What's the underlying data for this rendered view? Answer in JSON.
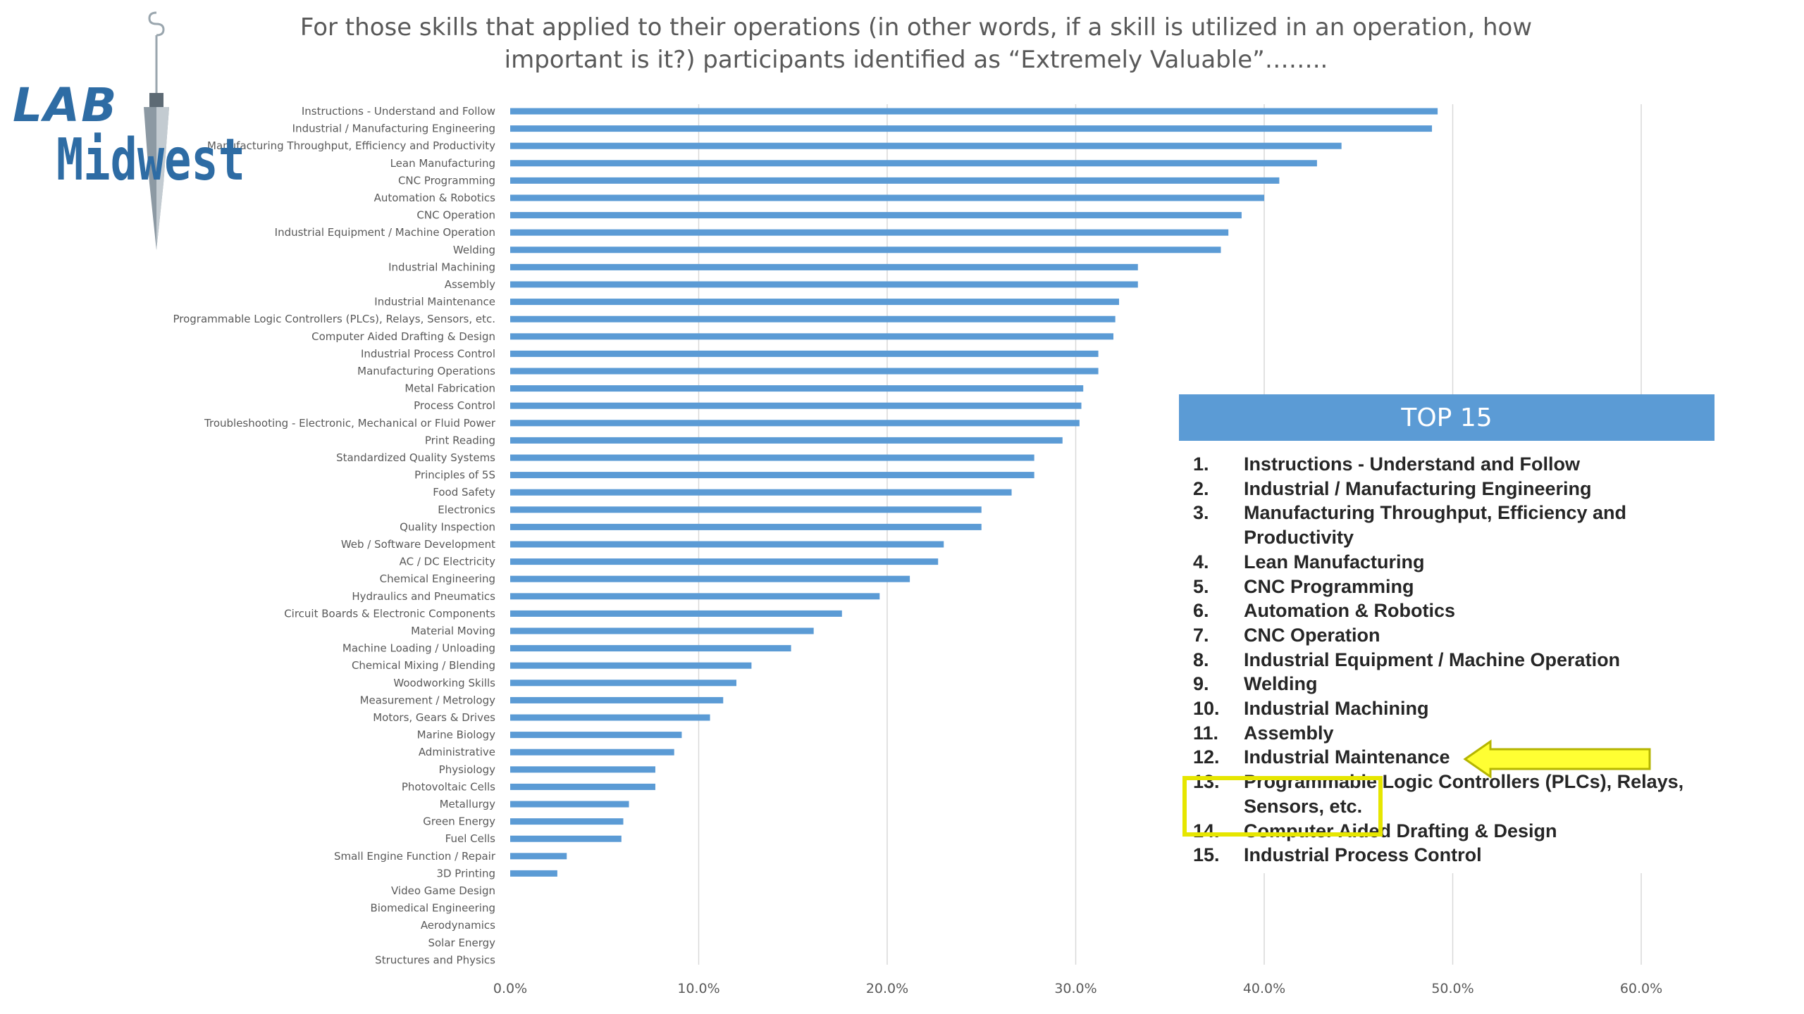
{
  "title": {
    "line1": "For those skills that applied to their operations (in other words, if a skill is utilized in an operation, how",
    "line2": "important is it?) participants identified as “Extremely Valuable”…….."
  },
  "logo": {
    "line1": "LAB",
    "line2": "Midwest",
    "icon": "plumb-bob-icon"
  },
  "chart_data": {
    "type": "bar",
    "orientation": "horizontal",
    "categories": [
      "Instructions - Understand and Follow",
      "Industrial / Manufacturing Engineering",
      "Manufacturing Throughput, Efficiency and Productivity",
      "Lean Manufacturing",
      "CNC Programming",
      "Automation & Robotics",
      "CNC Operation",
      "Industrial Equipment / Machine Operation",
      "Welding",
      "Industrial Machining",
      "Assembly",
      "Industrial Maintenance",
      "Programmable Logic Controllers (PLCs), Relays, Sensors, etc.",
      "Computer Aided Drafting & Design",
      "Industrial Process Control",
      "Manufacturing Operations",
      "Metal Fabrication",
      "Process Control",
      "Troubleshooting - Electronic, Mechanical or Fluid Power",
      "Print Reading",
      "Standardized Quality Systems",
      "Principles of 5S",
      "Food Safety",
      "Electronics",
      "Quality Inspection",
      "Web / Software Development",
      "AC / DC Electricity",
      "Chemical Engineering",
      "Hydraulics and Pneumatics",
      "Circuit Boards & Electronic Components",
      "Material Moving",
      "Machine Loading / Unloading",
      "Chemical Mixing / Blending",
      "Woodworking Skills",
      "Measurement / Metrology",
      "Motors, Gears & Drives",
      "Marine Biology",
      "Administrative",
      "Physiology",
      "Photovoltaic Cells",
      "Metallurgy",
      "Green Energy",
      "Fuel Cells",
      "Small Engine Function / Repair",
      "3D Printing",
      "Video Game Design",
      "Biomedical Engineering",
      "Aerodynamics",
      "Solar Energy",
      "Structures and Physics"
    ],
    "values": [
      49.2,
      48.9,
      44.1,
      42.8,
      40.8,
      40.0,
      38.8,
      38.1,
      37.7,
      33.3,
      33.3,
      32.3,
      32.1,
      32.0,
      31.2,
      31.2,
      30.4,
      30.3,
      30.2,
      29.3,
      27.8,
      27.8,
      26.6,
      25.0,
      25.0,
      23.0,
      22.7,
      21.2,
      19.6,
      17.6,
      16.1,
      14.9,
      12.8,
      12.0,
      11.3,
      10.6,
      9.1,
      8.7,
      7.7,
      7.7,
      6.3,
      6.0,
      5.9,
      3.0,
      2.5,
      0,
      0,
      0,
      0,
      0
    ],
    "x_ticks": [
      "0.0%",
      "10.0%",
      "20.0%",
      "30.0%",
      "40.0%",
      "50.0%",
      "60.0%"
    ],
    "xlim": [
      0,
      60
    ],
    "bar_color": "#5b9bd5",
    "grid": true
  },
  "top15": {
    "header": "TOP 15",
    "items": [
      {
        "num": "1.",
        "text": "Instructions - Understand and Follow"
      },
      {
        "num": "2.",
        "text": "Industrial / Manufacturing Engineering"
      },
      {
        "num": "3.",
        "text": "Manufacturing Throughput, Efficiency and Productivity"
      },
      {
        "num": "4.",
        "text": "Lean Manufacturing"
      },
      {
        "num": "5.",
        "text": "CNC Programming"
      },
      {
        "num": "6.",
        "text": "Automation & Robotics"
      },
      {
        "num": "7.",
        "text": "CNC Operation"
      },
      {
        "num": "8.",
        "text": "Industrial Equipment / Machine Operation"
      },
      {
        "num": "9.",
        "text": "Welding"
      },
      {
        "num": "10.",
        "text": "Industrial Machining"
      },
      {
        "num": "11.",
        "text": "Assembly"
      },
      {
        "num": "12.",
        "text": "Industrial Maintenance"
      },
      {
        "num": "13.",
        "text": "Programmable Logic Controllers (PLCs), Relays, Sensors, etc."
      },
      {
        "num": "14.",
        "text": "Computer Aided Drafting & Design"
      },
      {
        "num": "15.",
        "text": "Industrial Process Control"
      }
    ]
  },
  "callout": {
    "arrow_color": "#ffff33",
    "box_color": "#e6e600",
    "icon": "left-arrow-icon"
  }
}
